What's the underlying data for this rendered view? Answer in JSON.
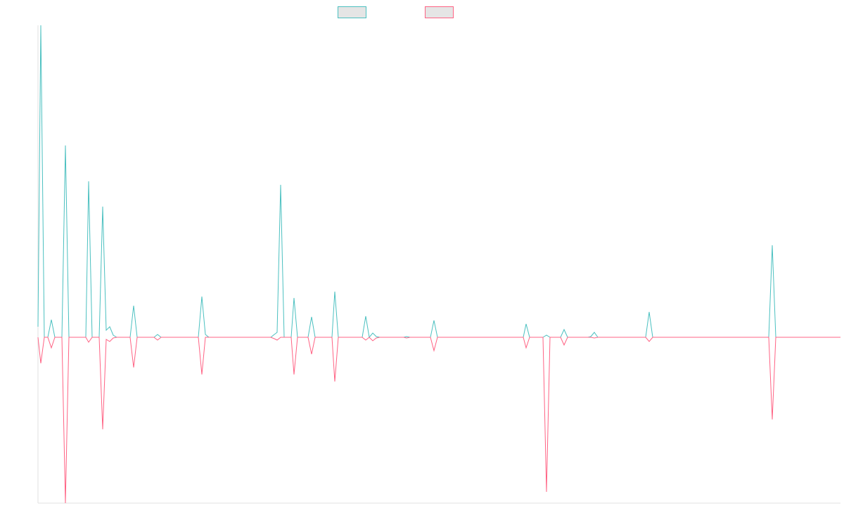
{
  "chart_data": {
    "type": "line",
    "x": [
      0,
      4,
      9,
      14,
      19,
      24,
      34,
      39,
      44,
      68,
      72,
      77,
      87,
      92,
      97,
      102,
      107,
      112,
      131,
      136,
      141,
      165,
      170,
      175,
      228,
      233,
      238,
      243,
      331,
      336,
      340,
      345,
      350,
      360,
      364,
      369,
      384,
      389,
      394,
      418,
      422,
      427,
      461,
      466,
      471,
      476,
      481,
      486,
      520,
      524,
      529,
      558,
      563,
      568,
      690,
      694,
      699,
      718,
      723,
      728,
      743,
      748,
      753,
      782,
      786,
      791,
      796,
      864,
      869,
      874,
      1039,
      1044,
      1049,
      1141
    ],
    "xlim": [
      0,
      1141
    ],
    "ylim": [
      -236,
      444
    ],
    "series": [
      {
        "color": "#4bc0c0",
        "values": [
          15,
          444,
          0,
          0,
          25,
          0,
          0,
          273,
          0,
          0,
          222,
          0,
          0,
          186,
          10,
          15,
          3,
          0,
          0,
          45,
          0,
          0,
          4,
          0,
          0,
          58,
          4,
          0,
          0,
          4,
          7,
          217,
          0,
          0,
          56,
          0,
          0,
          29,
          0,
          0,
          65,
          0,
          0,
          30,
          0,
          6,
          1,
          0,
          0,
          1,
          0,
          0,
          24,
          0,
          0,
          19,
          0,
          0,
          3,
          0,
          0,
          11,
          0,
          0,
          1,
          7,
          0,
          0,
          36,
          0,
          0,
          131,
          0,
          0
        ]
      },
      {
        "color": "#ff6384",
        "values": [
          0,
          -37,
          0,
          0,
          -15,
          0,
          0,
          -236,
          0,
          0,
          -7,
          0,
          0,
          -131,
          -3,
          -6,
          -1,
          0,
          0,
          -43,
          0,
          0,
          -4,
          0,
          0,
          -53,
          0,
          0,
          0,
          -2,
          -4,
          0,
          0,
          0,
          -53,
          0,
          0,
          -24,
          0,
          0,
          -63,
          0,
          0,
          -4,
          0,
          -5,
          -1,
          0,
          0,
          -1,
          0,
          0,
          -19,
          0,
          0,
          -15,
          0,
          0,
          -220,
          0,
          0,
          -11,
          0,
          0,
          0,
          -1,
          0,
          0,
          -6,
          0,
          0,
          -117,
          0,
          0
        ]
      }
    ]
  }
}
